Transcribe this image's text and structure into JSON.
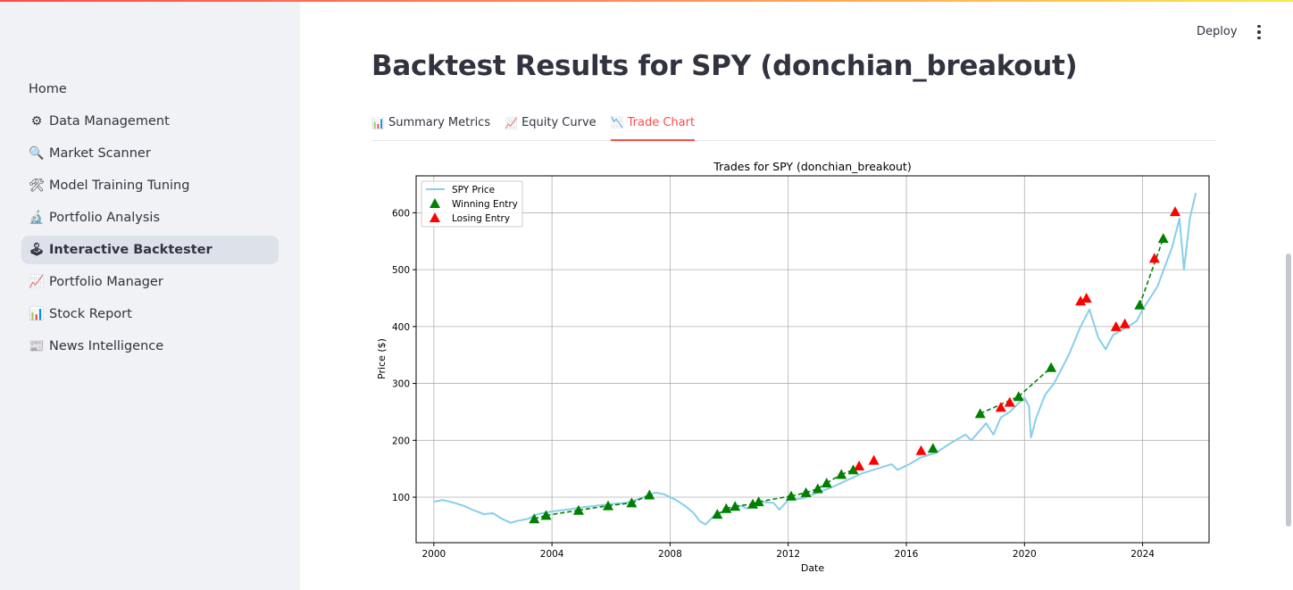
{
  "app": {
    "deploy_label": "Deploy"
  },
  "sidebar": {
    "items": [
      {
        "label": "Home",
        "icon": ""
      },
      {
        "label": "Data Management",
        "icon": "⚙"
      },
      {
        "label": "Market Scanner",
        "icon": "🔍"
      },
      {
        "label": "Model Training Tuning",
        "icon": "🛠"
      },
      {
        "label": "Portfolio Analysis",
        "icon": "🔬"
      },
      {
        "label": "Interactive Backtester",
        "icon": "🕹"
      },
      {
        "label": "Portfolio Manager",
        "icon": "📈"
      },
      {
        "label": "Stock Report",
        "icon": "📊"
      },
      {
        "label": "News Intelligence",
        "icon": "📰"
      }
    ],
    "active_index": 5
  },
  "main": {
    "title": "Backtest Results for SPY (donchian_breakout)",
    "tabs": [
      {
        "label": "Summary Metrics",
        "icon": "📊"
      },
      {
        "label": "Equity Curve",
        "icon": "📈"
      },
      {
        "label": "Trade Chart",
        "icon": "📉"
      }
    ],
    "active_tab": 2
  },
  "colors": {
    "accent": "#ff4b4b",
    "price_line": "#87ceeb",
    "win": "#008000",
    "loss": "#ff0000"
  },
  "chart_data": {
    "type": "line",
    "title": "Trades for SPY (donchian_breakout)",
    "xlabel": "Date",
    "ylabel": "Price ($)",
    "xlim": [
      1999.4,
      2026.25
    ],
    "ylim": [
      20,
      665
    ],
    "xticks": [
      "2000",
      "2004",
      "2008",
      "2012",
      "2016",
      "2020",
      "2024"
    ],
    "yticks": [
      "100",
      "200",
      "300",
      "400",
      "500",
      "600"
    ],
    "grid": true,
    "legend_position": "top-left",
    "series": [
      {
        "name": "SPY Price",
        "kind": "line",
        "x": [
          2000.0,
          2000.3,
          2000.7,
          2001.0,
          2001.3,
          2001.7,
          2002.0,
          2002.3,
          2002.6,
          2002.8,
          2003.0,
          2003.2,
          2003.5,
          2004.0,
          2004.5,
          2005.0,
          2005.5,
          2006.0,
          2006.5,
          2007.0,
          2007.5,
          2007.8,
          2008.2,
          2008.5,
          2008.8,
          2009.0,
          2009.2,
          2009.5,
          2010.0,
          2010.4,
          2010.6,
          2011.0,
          2011.5,
          2011.7,
          2012.0,
          2012.5,
          2013.0,
          2013.5,
          2014.0,
          2014.5,
          2015.0,
          2015.5,
          2015.7,
          2016.1,
          2016.5,
          2017.0,
          2017.5,
          2018.0,
          2018.2,
          2018.7,
          2018.95,
          2019.2,
          2019.5,
          2020.0,
          2020.15,
          2020.22,
          2020.4,
          2020.7,
          2021.0,
          2021.5,
          2021.9,
          2022.2,
          2022.5,
          2022.75,
          2023.0,
          2023.5,
          2023.8,
          2024.0,
          2024.5,
          2025.0,
          2025.25,
          2025.4,
          2025.6,
          2025.8
        ],
        "values": [
          92,
          95,
          90,
          85,
          78,
          70,
          72,
          62,
          55,
          58,
          60,
          62,
          70,
          75,
          78,
          82,
          85,
          88,
          90,
          98,
          108,
          105,
          95,
          85,
          72,
          58,
          52,
          68,
          78,
          85,
          80,
          92,
          90,
          78,
          95,
          98,
          108,
          118,
          130,
          142,
          150,
          158,
          148,
          158,
          170,
          178,
          195,
          210,
          200,
          230,
          210,
          240,
          250,
          275,
          260,
          205,
          240,
          280,
          300,
          350,
          400,
          430,
          380,
          360,
          385,
          400,
          410,
          430,
          470,
          540,
          590,
          500,
          590,
          635
        ]
      },
      {
        "name": "Winning Entry",
        "kind": "marker",
        "x": [
          2003.4,
          2003.8,
          2004.9,
          2005.9,
          2006.7,
          2007.3,
          2009.6,
          2009.9,
          2010.2,
          2010.8,
          2011.0,
          2012.1,
          2012.6,
          2013.0,
          2013.3,
          2013.8,
          2014.2,
          2016.9,
          2018.5,
          2019.8,
          2020.9,
          2023.9,
          2024.7
        ],
        "values": [
          62,
          68,
          77,
          85,
          90,
          104,
          70,
          80,
          84,
          88,
          92,
          102,
          108,
          115,
          125,
          140,
          148,
          186,
          247,
          277,
          328,
          438,
          555
        ]
      },
      {
        "name": "Losing Entry",
        "kind": "marker",
        "x": [
          2014.4,
          2014.9,
          2016.5,
          2019.2,
          2019.5,
          2021.9,
          2022.1,
          2023.1,
          2023.4,
          2024.4,
          2025.1
        ],
        "values": [
          155,
          165,
          182,
          258,
          267,
          445,
          450,
          400,
          405,
          520,
          602
        ]
      }
    ]
  }
}
